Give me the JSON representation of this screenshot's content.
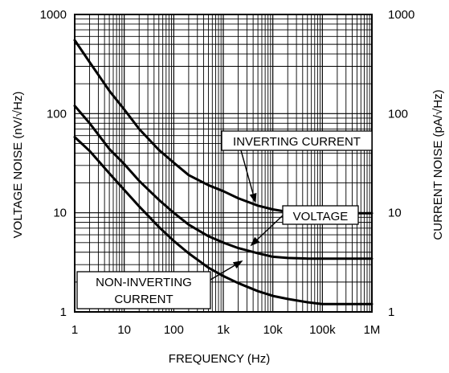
{
  "chart_data": {
    "type": "line",
    "xscale": "log",
    "yscale": "log",
    "xlim": [
      1,
      1000000
    ],
    "ylim": [
      1,
      1000
    ],
    "y2lim": [
      1,
      1000
    ],
    "grid": true,
    "xlabel": "FREQUENCY (Hz)",
    "ylabel": "VOLTAGE NOISE (nV/√Hz)",
    "y2label": "CURRENT NOISE (pA/√Hz)",
    "x_tick_labels": [
      "1",
      "10",
      "100",
      "1k",
      "10k",
      "100k",
      "1M"
    ],
    "x_tick_values": [
      1,
      10,
      100,
      1000,
      10000,
      100000,
      1000000
    ],
    "y_tick_labels": [
      "1",
      "10",
      "100",
      "1000"
    ],
    "y_tick_values": [
      1,
      10,
      100,
      1000
    ],
    "y2_tick_labels": [
      "1",
      "10",
      "100",
      "1000"
    ],
    "series": [
      {
        "name": "INVERTING CURRENT",
        "x": [
          1,
          2,
          5,
          10,
          20,
          50,
          100,
          200,
          500,
          1000,
          2000,
          5000,
          10000,
          20000,
          50000,
          100000,
          200000,
          500000,
          1000000
        ],
        "y": [
          550,
          330,
          170,
          110,
          70,
          43,
          32,
          24,
          19,
          16.5,
          14,
          11.8,
          10.8,
          10.2,
          10,
          10,
          9.9,
          9.9,
          9.9
        ]
      },
      {
        "name": "VOLTAGE",
        "x": [
          1,
          2,
          5,
          10,
          20,
          50,
          100,
          200,
          500,
          1000,
          2000,
          5000,
          10000,
          20000,
          50000,
          100000,
          200000,
          500000,
          1000000
        ],
        "y": [
          120,
          80,
          44,
          31,
          21,
          13.5,
          10,
          7.6,
          5.8,
          5,
          4.4,
          3.9,
          3.6,
          3.5,
          3.45,
          3.45,
          3.45,
          3.45,
          3.45
        ]
      },
      {
        "name": "NON-INVERTING CURRENT",
        "x": [
          1,
          2,
          5,
          10,
          20,
          50,
          100,
          200,
          500,
          1000,
          2000,
          5000,
          10000,
          20000,
          50000,
          100000,
          200000,
          500000,
          1000000
        ],
        "y": [
          58,
          42,
          25,
          17,
          11.6,
          7.2,
          5.2,
          3.9,
          2.8,
          2.3,
          1.95,
          1.62,
          1.45,
          1.35,
          1.25,
          1.2,
          1.2,
          1.2,
          1.2
        ]
      }
    ],
    "annotations": [
      {
        "lines": [
          "INVERTING CURRENT"
        ],
        "series": "INVERTING CURRENT",
        "arrow_to": [
          4500,
          12.5
        ]
      },
      {
        "lines": [
          "VOLTAGE"
        ],
        "series": "VOLTAGE",
        "arrow_to": [
          3500,
          4.6
        ]
      },
      {
        "lines": [
          "NON-INVERTING",
          "CURRENT"
        ],
        "series": "NON-INVERTING CURRENT",
        "arrow_to": [
          2500,
          3.3
        ]
      }
    ]
  }
}
